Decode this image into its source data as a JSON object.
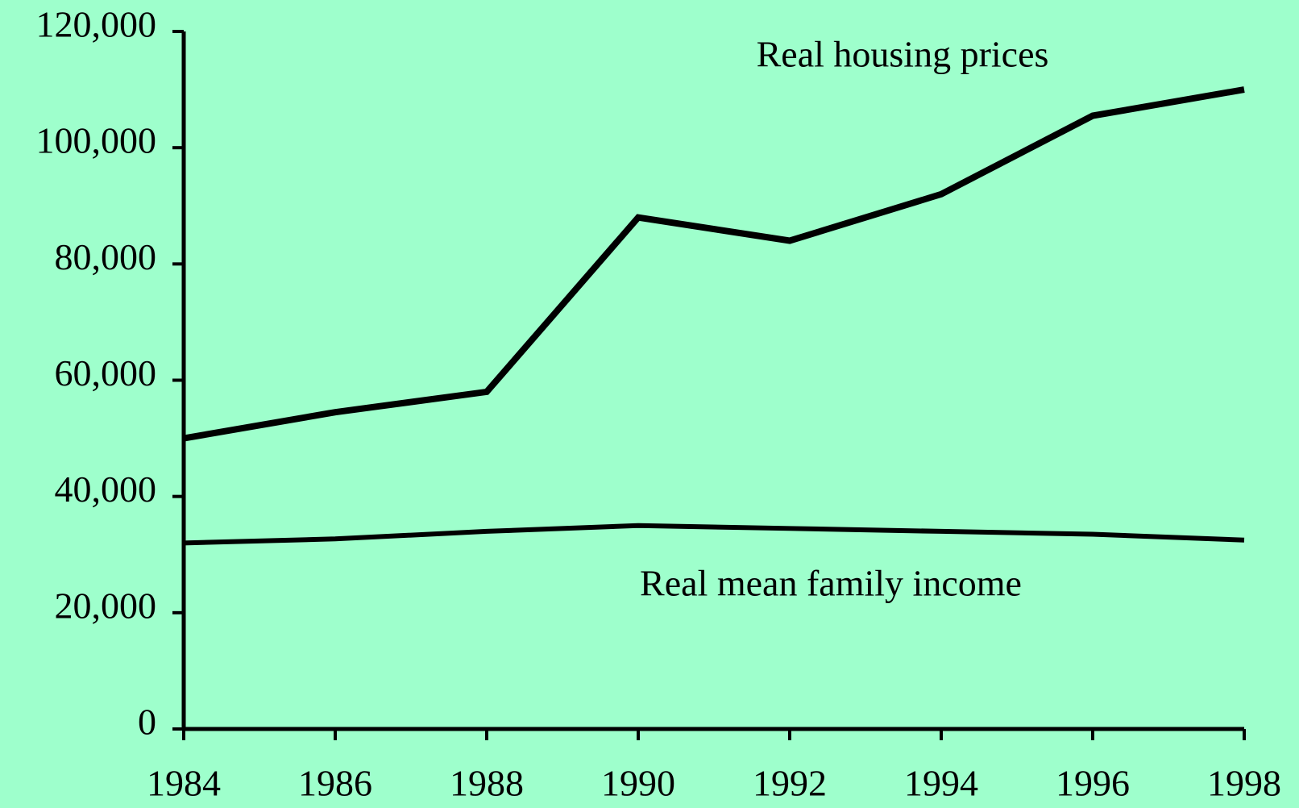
{
  "chart_data": {
    "type": "line",
    "x": [
      1984,
      1986,
      1988,
      1990,
      1992,
      1994,
      1996,
      1998
    ],
    "series": [
      {
        "name": "Real housing prices",
        "color": "#000000",
        "values": [
          50000,
          54500,
          58000,
          88000,
          84000,
          92000,
          105500,
          110000
        ]
      },
      {
        "name": "Real mean family income",
        "color": "#000000",
        "values": [
          32000,
          32700,
          34000,
          35000,
          34500,
          34000,
          33500,
          32500
        ]
      }
    ],
    "xlim": [
      1984,
      1998
    ],
    "xticks": [
      1984,
      1986,
      1988,
      1990,
      1992,
      1994,
      1996,
      1998
    ],
    "ylim": [
      0,
      120000
    ],
    "yticks": [
      0,
      {
        "value": 20000,
        "label": "20,000"
      },
      {
        "value": 40000,
        "label": "40,000"
      },
      {
        "value": 60000,
        "label": "60,000"
      },
      {
        "value": 80000,
        "label": "80,000"
      },
      {
        "value": 100000,
        "label": "100,000"
      },
      {
        "value": 120000,
        "label": "120,000"
      }
    ],
    "grid": false
  }
}
